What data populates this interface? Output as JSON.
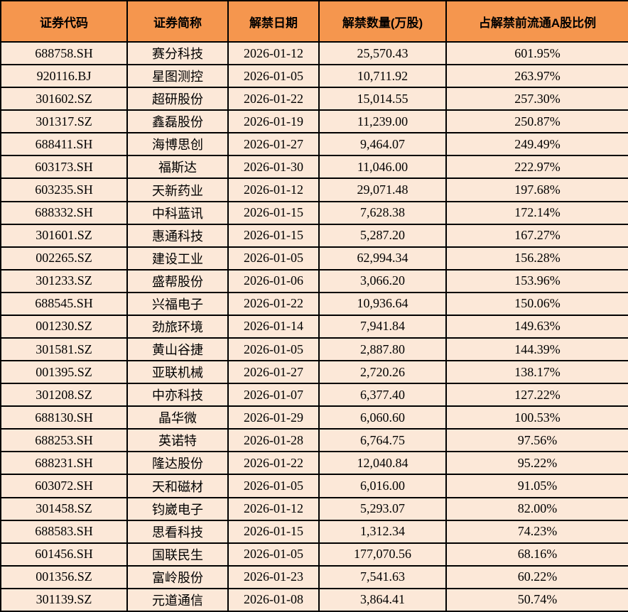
{
  "colors": {
    "header_bg": "#F5964E",
    "row_bg": "#FCE8D8",
    "border": "#000000",
    "header_text": "#000000",
    "body_text": "#000000"
  },
  "chart_data": {
    "type": "table",
    "columns": [
      "证券代码",
      "证券简称",
      "解禁日期",
      "解禁数量(万股)",
      "占解禁前流通A股比例"
    ],
    "rows": [
      [
        "688758.SH",
        "赛分科技",
        "2026-01-12",
        "25,570.43",
        "601.95%"
      ],
      [
        "920116.BJ",
        "星图测控",
        "2026-01-05",
        "10,711.92",
        "263.97%"
      ],
      [
        "301602.SZ",
        "超研股份",
        "2026-01-22",
        "15,014.55",
        "257.30%"
      ],
      [
        "301317.SZ",
        "鑫磊股份",
        "2026-01-19",
        "11,239.00",
        "250.87%"
      ],
      [
        "688411.SH",
        "海博思创",
        "2026-01-27",
        "9,464.07",
        "249.49%"
      ],
      [
        "603173.SH",
        "福斯达",
        "2026-01-30",
        "11,046.00",
        "222.97%"
      ],
      [
        "603235.SH",
        "天新药业",
        "2026-01-12",
        "29,071.48",
        "197.68%"
      ],
      [
        "688332.SH",
        "中科蓝讯",
        "2026-01-15",
        "7,628.38",
        "172.14%"
      ],
      [
        "301601.SZ",
        "惠通科技",
        "2026-01-15",
        "5,287.20",
        "167.27%"
      ],
      [
        "002265.SZ",
        "建设工业",
        "2026-01-05",
        "62,994.34",
        "156.28%"
      ],
      [
        "301233.SZ",
        "盛帮股份",
        "2026-01-06",
        "3,066.20",
        "153.96%"
      ],
      [
        "688545.SH",
        "兴福电子",
        "2026-01-22",
        "10,936.64",
        "150.06%"
      ],
      [
        "001230.SZ",
        "劲旅环境",
        "2026-01-14",
        "7,941.84",
        "149.63%"
      ],
      [
        "301581.SZ",
        "黄山谷捷",
        "2026-01-05",
        "2,887.80",
        "144.39%"
      ],
      [
        "001395.SZ",
        "亚联机械",
        "2026-01-27",
        "2,720.26",
        "138.17%"
      ],
      [
        "301208.SZ",
        "中亦科技",
        "2026-01-07",
        "6,377.40",
        "127.22%"
      ],
      [
        "688130.SH",
        "晶华微",
        "2026-01-29",
        "6,060.60",
        "100.53%"
      ],
      [
        "688253.SH",
        "英诺特",
        "2026-01-28",
        "6,764.75",
        "97.56%"
      ],
      [
        "688231.SH",
        "隆达股份",
        "2026-01-22",
        "12,040.84",
        "95.22%"
      ],
      [
        "603072.SH",
        "天和磁材",
        "2026-01-05",
        "6,016.00",
        "91.05%"
      ],
      [
        "301458.SZ",
        "钧崴电子",
        "2026-01-12",
        "5,293.07",
        "82.00%"
      ],
      [
        "688583.SH",
        "思看科技",
        "2026-01-15",
        "1,312.34",
        "74.23%"
      ],
      [
        "601456.SH",
        "国联民生",
        "2026-01-05",
        "177,070.56",
        "68.16%"
      ],
      [
        "001356.SZ",
        "富岭股份",
        "2026-01-23",
        "7,541.63",
        "60.22%"
      ],
      [
        "301139.SZ",
        "元道通信",
        "2026-01-08",
        "3,864.41",
        "50.74%"
      ]
    ],
    "cell_names": [
      "cell-security-code",
      "cell-security-name",
      "cell-unlock-date",
      "cell-unlock-quantity",
      "cell-ratio-before-unlock"
    ]
  }
}
